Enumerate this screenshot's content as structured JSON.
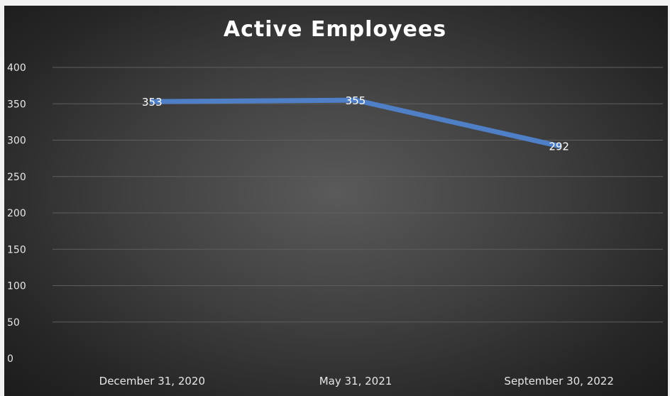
{
  "chart_data": {
    "type": "line",
    "title": "Active Employees",
    "categories": [
      "December 31, 2020",
      "May 31, 2021",
      "September 30, 2022"
    ],
    "series": [
      {
        "values": [
          353,
          355,
          292
        ]
      }
    ],
    "data_labels": [
      "353",
      "355",
      "292"
    ],
    "yticks": [
      "0",
      "50",
      "100",
      "150",
      "200",
      "250",
      "300",
      "350",
      "400"
    ],
    "ylim": [
      0,
      400
    ],
    "xlabel": "",
    "ylabel": "",
    "grid": true,
    "legend": "none"
  },
  "colors": {
    "line": "#4f7fc6",
    "background_center": "#5a5a5a",
    "background_edge": "#1c1c1c",
    "text": "#e6e6e6"
  }
}
